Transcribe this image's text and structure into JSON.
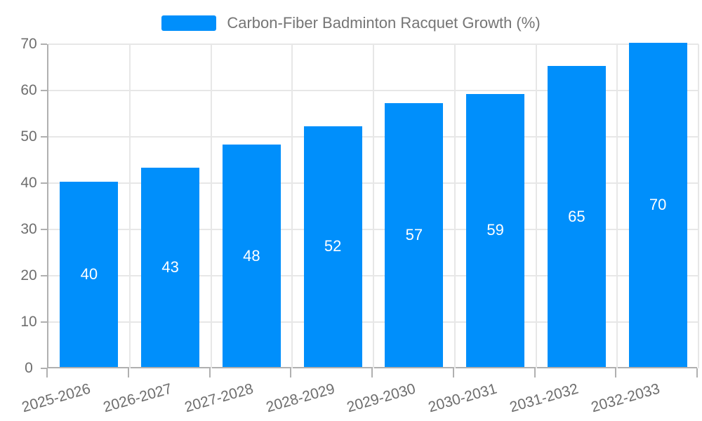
{
  "chart_data": {
    "type": "bar",
    "title": "Carbon-Fiber Badminton Racquet Growth (%)",
    "categories": [
      "2025-2026",
      "2026-2027",
      "2027-2028",
      "2028-2029",
      "2029-2030",
      "2030-2031",
      "2031-2032",
      "2032-2033"
    ],
    "values": [
      40,
      43,
      48,
      52,
      57,
      59,
      65,
      70
    ],
    "xlabel": "",
    "ylabel": "",
    "ylim": [
      0,
      70
    ],
    "yticks": [
      0,
      10,
      20,
      30,
      40,
      50,
      60,
      70
    ],
    "grid": true,
    "legend": {
      "position": "top",
      "entries": [
        "Carbon-Fiber Badminton Racquet Growth (%)"
      ]
    },
    "colors": {
      "bar": "#008FFB",
      "value_label": "#FFFFFF",
      "grid": "#E7E7E7",
      "axis": "#B0B0B0",
      "tick_label": "#6E6E6E",
      "legend_text": "#757575",
      "background": "#FFFFFF"
    }
  }
}
